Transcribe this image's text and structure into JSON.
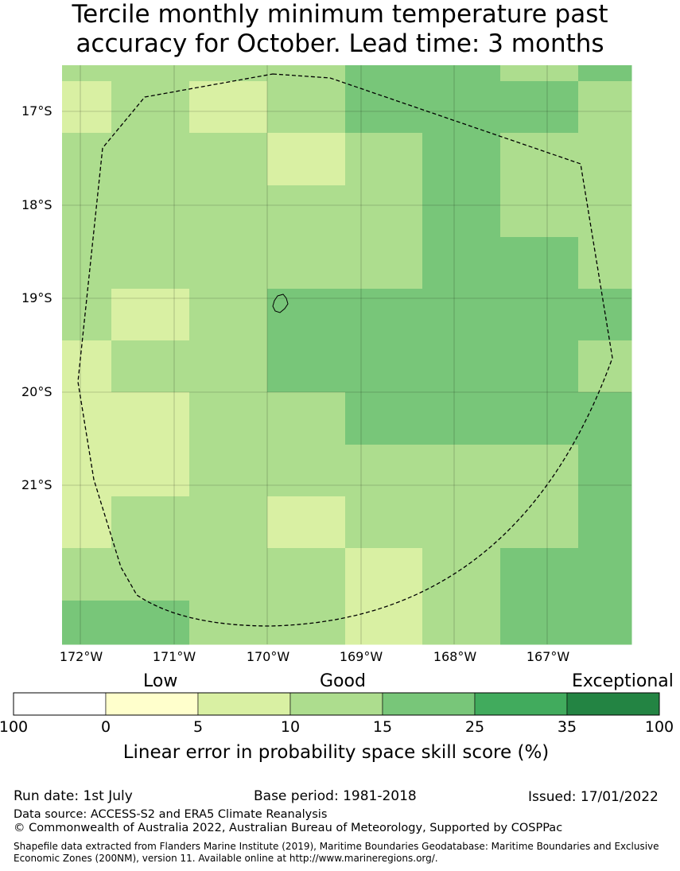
{
  "title_line1": "Tercile monthly minimum temperature past",
  "title_line2": "accuracy for October. Lead time: 3 months",
  "map": {
    "lat_labels": [
      "17°S",
      "18°S",
      "19°S",
      "20°S",
      "21°S"
    ],
    "lon_labels": [
      "172°W",
      "171°W",
      "170°W",
      "169°W",
      "168°W",
      "167°W"
    ],
    "grid": [
      [
        3,
        3,
        3,
        3,
        4,
        4,
        3,
        4
      ],
      [
        2,
        3,
        2,
        3,
        4,
        4,
        4,
        3
      ],
      [
        3,
        3,
        3,
        2,
        3,
        4,
        3,
        3
      ],
      [
        3,
        3,
        3,
        3,
        3,
        4,
        3,
        3
      ],
      [
        3,
        3,
        3,
        3,
        3,
        4,
        4,
        3
      ],
      [
        3,
        2,
        3,
        4,
        4,
        4,
        4,
        4
      ],
      [
        2,
        3,
        3,
        4,
        4,
        4,
        4,
        3
      ],
      [
        2,
        2,
        3,
        3,
        4,
        4,
        4,
        4
      ],
      [
        2,
        2,
        3,
        3,
        3,
        3,
        3,
        4
      ],
      [
        2,
        3,
        3,
        2,
        3,
        3,
        3,
        4
      ],
      [
        3,
        3,
        3,
        3,
        2,
        3,
        4,
        4
      ],
      [
        4,
        4,
        3,
        3,
        2,
        3,
        4,
        4
      ]
    ]
  },
  "legend": {
    "categories": [
      "Low",
      "Good",
      "Exceptional"
    ],
    "ticks": [
      "100",
      "0",
      "5",
      "10",
      "15",
      "25",
      "35",
      "100"
    ],
    "colors": [
      "#ffffff",
      "#ffffcc",
      "#d9f0a3",
      "#addd8e",
      "#78c679",
      "#41ab5d",
      "#238443"
    ],
    "title": "Linear error in probability space skill score (%)"
  },
  "footer": {
    "run_date": "Run date: 1st July",
    "base_period": "Base period: 1981-2018",
    "issued": "Issued: 17/01/2022",
    "data_source": "Data source: ACCESS-S2 and ERA5 Climate Reanalysis",
    "copyright": "© Commonwealth of Australia 2022, Australian Bureau of Meteorology, Supported by COSPPac",
    "shapefile": "Shapefile data extracted from Flanders Marine Institute (2019), Maritime Boundaries Geodatabase: Maritime Boundaries and Exclusive Economic Zones (200NM), version 11. Available online at http://www.marineregions.org/."
  }
}
